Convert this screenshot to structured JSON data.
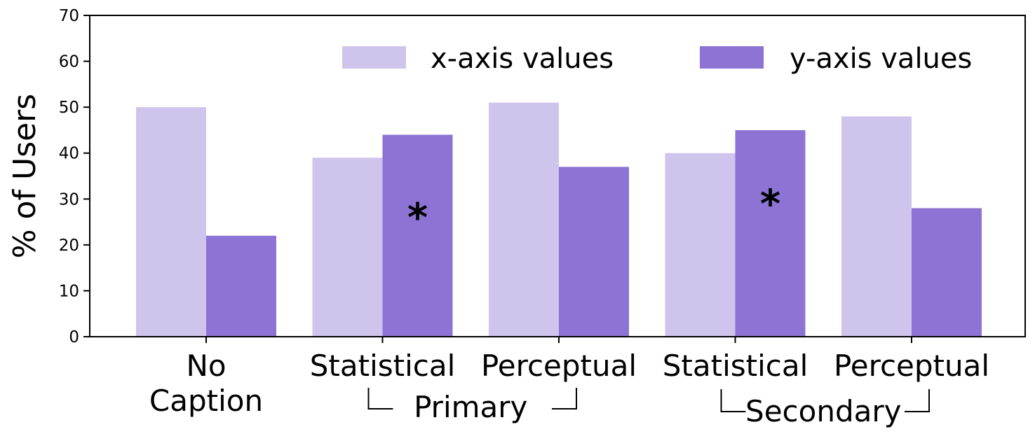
{
  "chart_data": {
    "type": "bar",
    "categories": [
      "No Caption",
      "Statistical",
      "Perceptual",
      "Statistical",
      "Perceptual"
    ],
    "series": [
      {
        "name": "x-axis values",
        "values": [
          50,
          39,
          51,
          40,
          48
        ],
        "color": "#cfc5ec"
      },
      {
        "name": "y-axis values",
        "values": [
          22,
          44,
          37,
          45,
          28
        ],
        "color": "#8c73d4"
      }
    ],
    "ylabel": "% of Users",
    "xlabel": "",
    "ylim": [
      0,
      70
    ],
    "yticks": [
      0,
      10,
      20,
      30,
      40,
      50,
      60,
      70
    ],
    "grid": false,
    "legend": "top-right",
    "groups": [
      {
        "label": "Primary",
        "categories": [
          1,
          2
        ]
      },
      {
        "label": "Secondary",
        "categories": [
          3,
          4
        ]
      }
    ],
    "annotations": [
      {
        "text": "*",
        "category": 1,
        "series": 1,
        "y": 27
      },
      {
        "text": "*",
        "category": 3,
        "series": 1,
        "y": 30
      }
    ]
  }
}
